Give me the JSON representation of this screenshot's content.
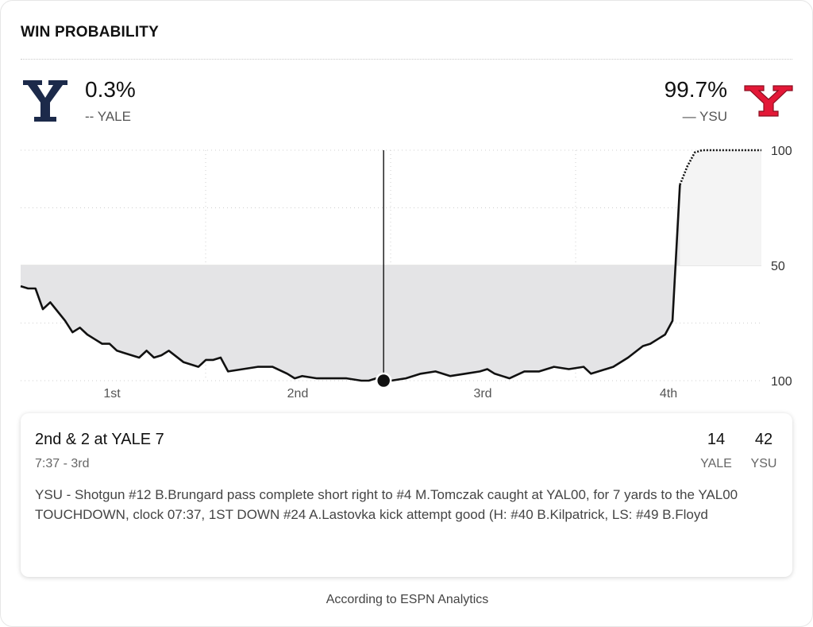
{
  "header": {
    "title": "WIN PROBABILITY"
  },
  "teams": {
    "away": {
      "pct": "0.3%",
      "line_marker": "--",
      "name": "YALE",
      "color": "#1c2a4a"
    },
    "home": {
      "pct": "99.7%",
      "line_marker": "—",
      "name": "YSU",
      "color": "#e31837"
    }
  },
  "chart_data": {
    "type": "line",
    "title": "WIN PROBABILITY",
    "x_tick_labels": [
      "1st",
      "2nd",
      "3rd",
      "4th"
    ],
    "y_tick_labels": [
      "100",
      "50",
      "100"
    ],
    "ylim": [
      0,
      100
    ],
    "x_range_plays": [
      0,
      100
    ],
    "series": [
      {
        "name": "YSU",
        "style": "solid until TOUCHDOWN, dotted after",
        "x": [
          0,
          1,
          2,
          3,
          4,
          5,
          6,
          7,
          8,
          9,
          10,
          11,
          12,
          13,
          14,
          15,
          16,
          17,
          18,
          19,
          20,
          22,
          24,
          25,
          26,
          27,
          28,
          30,
          32,
          34,
          36,
          37,
          38,
          40,
          42,
          44,
          46,
          47,
          48,
          50,
          52,
          54,
          56,
          58,
          60,
          62,
          63,
          64,
          66,
          68,
          70,
          72,
          74,
          76,
          77,
          78,
          80,
          82,
          84,
          85,
          86,
          87,
          88,
          89,
          90,
          91,
          92,
          93,
          94,
          95,
          96,
          97,
          98,
          99,
          100
        ],
        "values": [
          41,
          40,
          40,
          31,
          34,
          30,
          26,
          21,
          23,
          20,
          18,
          16,
          16,
          13,
          12,
          11,
          10,
          13,
          10,
          11,
          13,
          8,
          6,
          9,
          9,
          10,
          4,
          5,
          6,
          6,
          3,
          1,
          2,
          1,
          1,
          1,
          0,
          0,
          1,
          0,
          1,
          3,
          4,
          2,
          3,
          4,
          5,
          3,
          1,
          4,
          4,
          6,
          5,
          6,
          3,
          4,
          6,
          10,
          15,
          16,
          18,
          20,
          26,
          85,
          93,
          99,
          100,
          100,
          100,
          100,
          100,
          100,
          100,
          100,
          100
        ]
      }
    ],
    "current_marker": {
      "quarter": "3rd",
      "x": 49,
      "value": 0
    }
  },
  "play": {
    "down_distance": "2nd & 2 at YALE 7",
    "clock": "7:37 - 3rd",
    "away_score": "14",
    "home_score": "42",
    "away_label": "YALE",
    "home_label": "YSU",
    "description": "YSU - Shotgun #12 B.Brungard pass complete short right to #4 M.Tomczak caught at YAL00, for 7 yards to the YAL00 TOUCHDOWN, clock 07:37, 1ST DOWN #24 A.Lastovka kick attempt good (H: #40 B.Kilpatrick, LS: #49 B.Floyd"
  },
  "footer": {
    "attribution": "According to ESPN Analytics"
  }
}
